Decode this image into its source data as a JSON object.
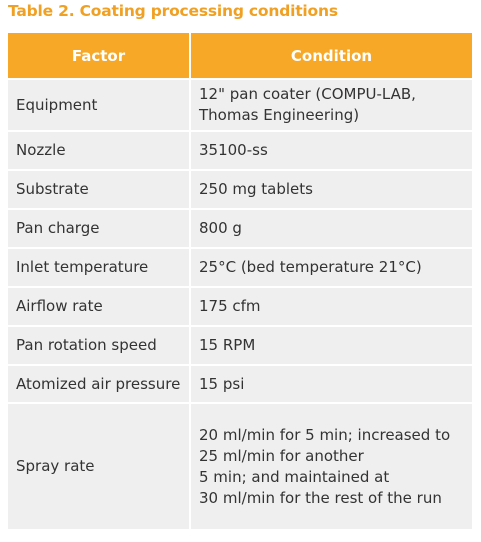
{
  "title": "Table 2. Coating processing conditions",
  "table": {
    "header": [
      "Factor",
      "Condition"
    ],
    "rows": [
      [
        "Equipment",
        "12\" pan coater (COMPU-LAB,\nThomas Engineering)"
      ],
      [
        "Nozzle",
        "35100-ss"
      ],
      [
        "Substrate",
        "250 mg tablets"
      ],
      [
        "Pan charge",
        "800 g"
      ],
      [
        "Inlet temperature",
        "25°C (bed temperature 21°C)"
      ],
      [
        "Airflow rate",
        "175 cfm"
      ],
      [
        "Pan rotation speed",
        "15 RPM"
      ],
      [
        "Atomized air pressure",
        "15 psi"
      ],
      [
        "Spray rate",
        "20 ml/min for 5 min; increased to\n25 ml/min for another\n5 min; and maintained at\n30 ml/min for the rest of the run"
      ]
    ]
  }
}
